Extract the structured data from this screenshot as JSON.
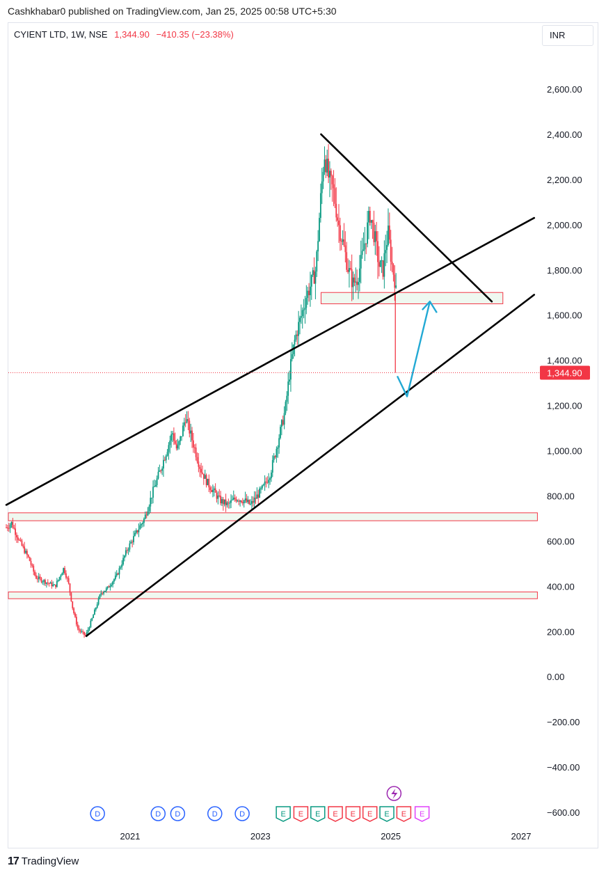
{
  "header": {
    "published": "Cashkhabar0 published on TradingView.com, Jan 25, 2025 00:58 UTC+5:30"
  },
  "symbol": {
    "name": "CYIENT LTD, 1W, NSE",
    "last": "1,344.90",
    "change": "−410.35 (−23.38%)"
  },
  "currency_button": "INR",
  "last_price_tag": "1,344.90",
  "footer": {
    "logo_mark": "17",
    "brand": "TradingView"
  },
  "colors": {
    "up": "#089981",
    "down": "#f23645",
    "trendline": "#000000",
    "zone_fill": "#e8f5e9",
    "zone_stroke": "#f23645",
    "arrow": "#22a9d4",
    "dividend": "#2962ff",
    "earnings_up": "#089981",
    "earnings_down": "#f23645",
    "earnings_future": "#e040fb",
    "split": "#9c27b0"
  },
  "chart_data": {
    "type": "candlestick",
    "y_axis_labels": [
      "2,600.00",
      "2,400.00",
      "2,200.00",
      "2,000.00",
      "1,800.00",
      "1,600.00",
      "1,400.00",
      "1,200.00",
      "1,000.00",
      "800.00",
      "600.00",
      "400.00",
      "200.00",
      "0.00",
      "−200.00",
      "−400.00",
      "−600.00"
    ],
    "y_axis_values": [
      2600,
      2400,
      2200,
      2000,
      1800,
      1600,
      1400,
      1200,
      1000,
      800,
      600,
      400,
      200,
      0,
      -200,
      -400,
      -600
    ],
    "x_axis_labels": [
      "2021",
      "2023",
      "2025",
      "2027"
    ],
    "x_axis_values": [
      2021,
      2023,
      2025,
      2027
    ],
    "ylim": [
      -660,
      2800
    ],
    "xlim": [
      2019.1,
      2027.3
    ],
    "grid": false,
    "price_path": [
      [
        2019.1,
        660
      ],
      [
        2019.18,
        680
      ],
      [
        2019.3,
        600
      ],
      [
        2019.45,
        520
      ],
      [
        2019.55,
        440
      ],
      [
        2019.7,
        420
      ],
      [
        2019.85,
        400
      ],
      [
        2019.98,
        480
      ],
      [
        2020.05,
        420
      ],
      [
        2020.12,
        300
      ],
      [
        2020.2,
        210
      ],
      [
        2020.32,
        180
      ],
      [
        2020.42,
        260
      ],
      [
        2020.55,
        370
      ],
      [
        2020.65,
        390
      ],
      [
        2020.8,
        450
      ],
      [
        2020.95,
        560
      ],
      [
        2021.1,
        640
      ],
      [
        2021.22,
        700
      ],
      [
        2021.35,
        820
      ],
      [
        2021.47,
        920
      ],
      [
        2021.57,
        1010
      ],
      [
        2021.65,
        1080
      ],
      [
        2021.72,
        1000
      ],
      [
        2021.78,
        1060
      ],
      [
        2021.85,
        1150
      ],
      [
        2021.92,
        1080
      ],
      [
        2022.0,
        1000
      ],
      [
        2022.08,
        920
      ],
      [
        2022.18,
        860
      ],
      [
        2022.28,
        820
      ],
      [
        2022.38,
        780
      ],
      [
        2022.5,
        760
      ],
      [
        2022.62,
        790
      ],
      [
        2022.75,
        780
      ],
      [
        2022.85,
        760
      ],
      [
        2022.95,
        800
      ],
      [
        2023.05,
        840
      ],
      [
        2023.15,
        900
      ],
      [
        2023.22,
        980
      ],
      [
        2023.3,
        1080
      ],
      [
        2023.38,
        1180
      ],
      [
        2023.45,
        1350
      ],
      [
        2023.52,
        1480
      ],
      [
        2023.58,
        1550
      ],
      [
        2023.63,
        1600
      ],
      [
        2023.7,
        1680
      ],
      [
        2023.78,
        1740
      ],
      [
        2023.85,
        1800
      ],
      [
        2023.92,
        2100
      ],
      [
        2023.98,
        2320
      ],
      [
        2024.05,
        2200
      ],
      [
        2024.12,
        2150
      ],
      [
        2024.2,
        2000
      ],
      [
        2024.28,
        1900
      ],
      [
        2024.35,
        1800
      ],
      [
        2024.42,
        1740
      ],
      [
        2024.48,
        1760
      ],
      [
        2024.55,
        1840
      ],
      [
        2024.62,
        1950
      ],
      [
        2024.68,
        2050
      ],
      [
        2024.75,
        1950
      ],
      [
        2024.82,
        1820
      ],
      [
        2024.88,
        1800
      ],
      [
        2024.92,
        1900
      ],
      [
        2024.96,
        1960
      ],
      [
        2025.02,
        1820
      ],
      [
        2025.06,
        1760
      ],
      [
        2025.08,
        1700
      ]
    ],
    "last_drop": {
      "from": 1700,
      "to": 1344.9,
      "date": 2025.07
    },
    "drawings": {
      "trendlines": [
        {
          "from": [
            2019.1,
            760
          ],
          "to": [
            2027.2,
            2030
          ]
        },
        {
          "from": [
            2020.33,
            180
          ],
          "to": [
            2027.2,
            1690
          ]
        },
        {
          "from": [
            2023.93,
            2400
          ],
          "to": [
            2026.55,
            1660
          ]
        }
      ],
      "zones": [
        {
          "x": [
            2023.93,
            2026.72
          ],
          "y": [
            1650,
            1700
          ]
        },
        {
          "x": [
            2019.1,
            2027.25
          ],
          "y": [
            690,
            725
          ]
        },
        {
          "x": [
            2019.1,
            2027.25
          ],
          "y": [
            345,
            375
          ]
        }
      ],
      "arrow_path": [
        [
          2025.1,
          1330
        ],
        [
          2025.25,
          1240
        ],
        [
          2025.6,
          1660
        ]
      ],
      "arrow_head_at": [
        2025.6,
        1660
      ]
    },
    "events": {
      "dividends": [
        2020.5,
        2021.43,
        2021.73,
        2022.3,
        2022.72
      ],
      "earnings": [
        {
          "x": 2023.35,
          "kind": "up"
        },
        {
          "x": 2023.62,
          "kind": "down"
        },
        {
          "x": 2023.88,
          "kind": "up"
        },
        {
          "x": 2024.15,
          "kind": "down"
        },
        {
          "x": 2024.42,
          "kind": "down"
        },
        {
          "x": 2024.68,
          "kind": "down"
        },
        {
          "x": 2024.94,
          "kind": "up"
        },
        {
          "x": 2025.2,
          "kind": "down"
        },
        {
          "x": 2025.48,
          "kind": "future"
        }
      ],
      "split_marker": 2025.05,
      "dividend_letter": "D",
      "earnings_letter": "E"
    }
  }
}
